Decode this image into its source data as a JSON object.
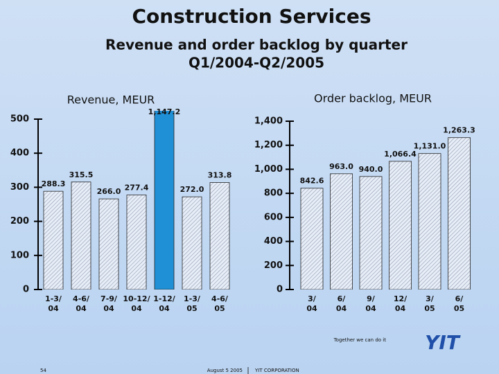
{
  "title": "Construction Services",
  "subtitle": [
    "Revenue and order backlog by quarter",
    "Q1/2004-Q2/2005"
  ],
  "chart_data": [
    {
      "type": "bar",
      "title": "Revenue, MEUR",
      "categories": [
        "1-3/ 04",
        "4-6/ 04",
        "7-9/ 04",
        "10-12/ 04",
        "1-12/ 04",
        "1-3/ 05",
        "4-6/ 05"
      ],
      "values": [
        288.3,
        315.5,
        266.0,
        277.4,
        1147.2,
        272.0,
        313.8
      ],
      "value_labels": [
        "288.3",
        "315.5",
        "266.0",
        "277.4",
        "1,147.2",
        "272.0",
        "313.8"
      ],
      "colors": [
        "hatch",
        "hatch",
        "hatch",
        "hatch",
        "#1f8fd6",
        "hatch",
        "hatch"
      ],
      "ylim": [
        0,
        500
      ],
      "yticks": [
        0,
        100,
        200,
        300,
        400,
        500
      ]
    },
    {
      "type": "bar",
      "title": "Order backlog, MEUR",
      "categories": [
        "3/ 04",
        "6/ 04",
        "9/ 04",
        "12/ 04",
        "3/ 05",
        "6/ 05"
      ],
      "values": [
        842.6,
        963.0,
        940.0,
        1066.4,
        1131.0,
        1263.3
      ],
      "value_labels": [
        "842.6",
        "963.0",
        "940.0",
        "1,066.4",
        "1,131.0",
        "1,263.3"
      ],
      "colors": [
        "hatch",
        "hatch",
        "hatch",
        "hatch",
        "hatch",
        "hatch"
      ],
      "ylim": [
        0,
        1400
      ],
      "yticks": [
        0,
        200,
        400,
        600,
        800,
        {
          "value": 1000,
          "label": "1,000"
        },
        {
          "value": 1200,
          "label": "1,200"
        },
        {
          "value": 1400,
          "label": "1,400"
        }
      ]
    }
  ],
  "footer": {
    "slogan": "Together we can do it",
    "logo": "YIT",
    "page": "54",
    "date": "August 5 2005",
    "company": "YIT CORPORATION"
  }
}
